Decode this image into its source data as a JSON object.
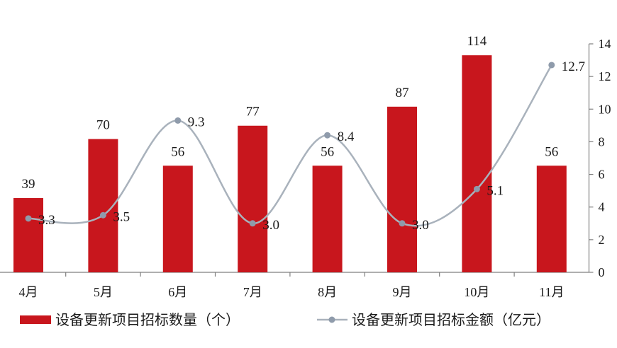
{
  "chart_data": {
    "type": "bar",
    "categories": [
      "4月",
      "5月",
      "6月",
      "7月",
      "8月",
      "9月",
      "10月",
      "11月"
    ],
    "series": [
      {
        "name": "设备更新项目招标数量（个）",
        "type": "bar",
        "axis": "left",
        "values": [
          39,
          70,
          56,
          77,
          56,
          87,
          114,
          56
        ]
      },
      {
        "name": "设备更新项目招标金额（亿元）",
        "type": "line",
        "smooth": true,
        "axis": "right",
        "values": [
          3.3,
          3.5,
          9.3,
          3.0,
          8.4,
          3.0,
          5.1,
          12.7
        ],
        "data_labels": [
          "3.3",
          "3.5",
          "9.3",
          "3.0",
          "8.4",
          "3.0",
          "5.1",
          "12.7"
        ]
      }
    ],
    "ylim": [
      0,
      120
    ],
    "y2lim": [
      0,
      14
    ],
    "y2_ticks": [
      0,
      2,
      4,
      6,
      8,
      10,
      12,
      14
    ],
    "legend": "bottom",
    "grid": false,
    "colors": {
      "bar": "#c8161d",
      "line": "#a9b2bc",
      "marker": "#8f9bab",
      "axis": "#7f7f7f",
      "text": "#1a1a1a"
    }
  }
}
